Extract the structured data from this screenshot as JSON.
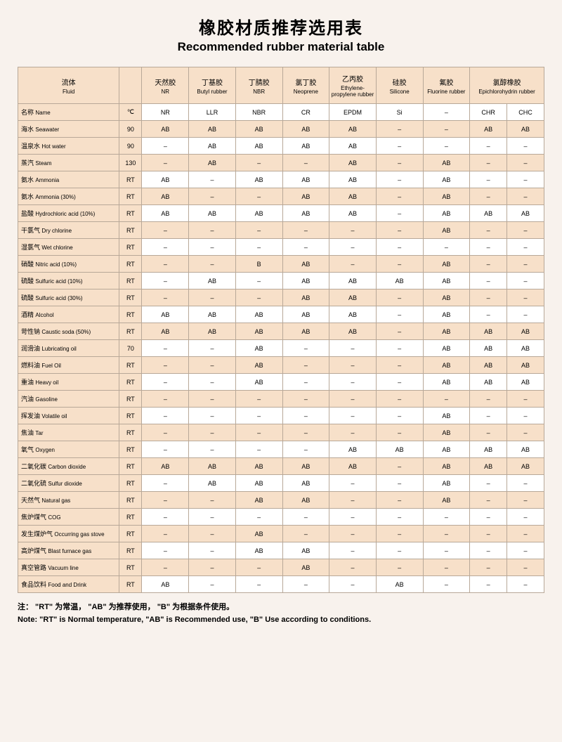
{
  "title_cn": "橡胶材质推荐选用表",
  "title_en": "Recommended rubber material table",
  "header": {
    "fluid_cn": "流体",
    "fluid_en": "Fluid",
    "temp_unit": "℃",
    "materials": [
      {
        "cn": "天然胶",
        "en": "NR"
      },
      {
        "cn": "丁基胶",
        "en": "Butyl rubber"
      },
      {
        "cn": "丁腈胶",
        "en": "NBR"
      },
      {
        "cn": "氯丁胶",
        "en": "Neoprene"
      },
      {
        "cn": "乙丙胶",
        "en": "Ethylene-propylene rubber"
      },
      {
        "cn": "硅胶",
        "en": "Silicone"
      },
      {
        "cn": "氟胶",
        "en": "Fluorine rubber"
      },
      {
        "cn": "氯醇橡胶",
        "en": "Epichlorohydrin rubber"
      }
    ]
  },
  "name_row": {
    "cn": "名称",
    "en": "Name",
    "codes": [
      "NR",
      "LLR",
      "NBR",
      "CR",
      "EPDM",
      "Si",
      "–",
      "CHR",
      "CHC"
    ]
  },
  "rows": [
    {
      "cn": "海水",
      "en": "Seawater",
      "t": "90",
      "v": [
        "AB",
        "AB",
        "AB",
        "AB",
        "AB",
        "–",
        "–",
        "AB",
        "AB"
      ]
    },
    {
      "cn": "温泉水",
      "en": "Hot water",
      "t": "90",
      "v": [
        "–",
        "AB",
        "AB",
        "AB",
        "AB",
        "–",
        "–",
        "–",
        "–"
      ]
    },
    {
      "cn": "蒸汽",
      "en": "Steam",
      "t": "130",
      "v": [
        "–",
        "AB",
        "–",
        "–",
        "AB",
        "–",
        "AB",
        "–",
        "–"
      ]
    },
    {
      "cn": "氨水",
      "en": "Ammonia",
      "t": "RT",
      "v": [
        "AB",
        "–",
        "AB",
        "AB",
        "AB",
        "–",
        "AB",
        "–",
        "–"
      ]
    },
    {
      "cn": "氨水",
      "en": "Ammonia (30%)",
      "t": "RT",
      "v": [
        "AB",
        "–",
        "–",
        "AB",
        "AB",
        "–",
        "AB",
        "–",
        "–"
      ]
    },
    {
      "cn": "盐酸",
      "en": "Hydrochloric acid (10%)",
      "t": "RT",
      "v": [
        "AB",
        "AB",
        "AB",
        "AB",
        "AB",
        "–",
        "AB",
        "AB",
        "AB"
      ]
    },
    {
      "cn": "干氯气",
      "en": "Dry chlorine",
      "t": "RT",
      "v": [
        "–",
        "–",
        "–",
        "–",
        "–",
        "–",
        "AB",
        "–",
        "–"
      ]
    },
    {
      "cn": "湿氯气",
      "en": "Wet chlorine",
      "t": "RT",
      "v": [
        "–",
        "–",
        "–",
        "–",
        "–",
        "–",
        "–",
        "–",
        "–"
      ]
    },
    {
      "cn": "硝酸",
      "en": "Nitric acid (10%)",
      "t": "RT",
      "v": [
        "–",
        "–",
        "B",
        "AB",
        "–",
        "–",
        "AB",
        "–",
        "–"
      ]
    },
    {
      "cn": "硫酸",
      "en": "Sulfuric acid (10%)",
      "t": "RT",
      "v": [
        "–",
        "AB",
        "–",
        "AB",
        "AB",
        "AB",
        "AB",
        "–",
        "–"
      ]
    },
    {
      "cn": "硫酸",
      "en": "Sulfuric acid (30%)",
      "t": "RT",
      "v": [
        "–",
        "–",
        "–",
        "AB",
        "AB",
        "–",
        "AB",
        "–",
        "–"
      ]
    },
    {
      "cn": "酒精",
      "en": "Alcohol",
      "t": "RT",
      "v": [
        "AB",
        "AB",
        "AB",
        "AB",
        "AB",
        "–",
        "AB",
        "–",
        "–"
      ]
    },
    {
      "cn": "苛性钠",
      "en": "Caustic soda (50%)",
      "t": "RT",
      "v": [
        "AB",
        "AB",
        "AB",
        "AB",
        "AB",
        "–",
        "AB",
        "AB",
        "AB"
      ]
    },
    {
      "cn": "润滑油",
      "en": "Lubricating oil",
      "t": "70",
      "v": [
        "–",
        "–",
        "AB",
        "–",
        "–",
        "–",
        "AB",
        "AB",
        "AB"
      ]
    },
    {
      "cn": "燃料油",
      "en": "Fuel Oil",
      "t": "RT",
      "v": [
        "–",
        "–",
        "AB",
        "–",
        "–",
        "–",
        "AB",
        "AB",
        "AB"
      ]
    },
    {
      "cn": "重油",
      "en": "Heavy oil",
      "t": "RT",
      "v": [
        "–",
        "–",
        "AB",
        "–",
        "–",
        "–",
        "AB",
        "AB",
        "AB"
      ]
    },
    {
      "cn": "汽油",
      "en": "Gasoline",
      "t": "RT",
      "v": [
        "–",
        "–",
        "–",
        "–",
        "–",
        "–",
        "–",
        "–",
        "–"
      ]
    },
    {
      "cn": "挥发油",
      "en": "Volatile oil",
      "t": "RT",
      "v": [
        "–",
        "–",
        "–",
        "–",
        "–",
        "–",
        "AB",
        "–",
        "–"
      ]
    },
    {
      "cn": "焦油",
      "en": "Tar",
      "t": "RT",
      "v": [
        "–",
        "–",
        "–",
        "–",
        "–",
        "–",
        "AB",
        "–",
        "–"
      ]
    },
    {
      "cn": "氧气",
      "en": "Oxygen",
      "t": "RT",
      "v": [
        "–",
        "–",
        "–",
        "–",
        "AB",
        "AB",
        "AB",
        "AB",
        "AB"
      ]
    },
    {
      "cn": "二氧化碳",
      "en": "Carbon dioxide",
      "t": "RT",
      "v": [
        "AB",
        "AB",
        "AB",
        "AB",
        "AB",
        "–",
        "AB",
        "AB",
        "AB"
      ]
    },
    {
      "cn": "二氧化硫",
      "en": "Sulfur dioxide",
      "t": "RT",
      "v": [
        "–",
        "AB",
        "AB",
        "AB",
        "–",
        "–",
        "AB",
        "–",
        "–"
      ]
    },
    {
      "cn": "天然气",
      "en": "Natural gas",
      "t": "RT",
      "v": [
        "–",
        "–",
        "AB",
        "AB",
        "–",
        "–",
        "AB",
        "–",
        "–"
      ]
    },
    {
      "cn": "焦炉煤气",
      "en": "COG",
      "t": "RT",
      "v": [
        "–",
        "–",
        "–",
        "–",
        "–",
        "–",
        "–",
        "–",
        "–"
      ]
    },
    {
      "cn": "发生煤炉气",
      "en": "Occurring gas stove",
      "t": "RT",
      "v": [
        "–",
        "–",
        "AB",
        "–",
        "–",
        "–",
        "–",
        "–",
        "–"
      ]
    },
    {
      "cn": "高炉煤气",
      "en": "Blast furnace gas",
      "t": "RT",
      "v": [
        "–",
        "–",
        "AB",
        "AB",
        "–",
        "–",
        "–",
        "–",
        "–"
      ]
    },
    {
      "cn": "真空管路",
      "en": "Vacuum line",
      "t": "RT",
      "v": [
        "–",
        "–",
        "–",
        "AB",
        "–",
        "–",
        "–",
        "–",
        "–"
      ]
    },
    {
      "cn": "食品饮料",
      "en": "Food and Drink",
      "t": "RT",
      "v": [
        "AB",
        "–",
        "–",
        "–",
        "–",
        "AB",
        "–",
        "–",
        "–"
      ]
    }
  ],
  "footnote_cn": "注： \"RT\" 为常温， \"AB\" 为推荐使用， \"B\" 为根据条件使用。",
  "footnote_en": "Note:  \"RT\" is Normal temperature,  \"AB\" is Recommended use,  \"B\" Use according to conditions.",
  "colors": {
    "page_bg": "#f8f2ed",
    "header_bg": "#f7e0c9",
    "row_alt_bg": "#ffffff",
    "border": "#b8a898"
  }
}
